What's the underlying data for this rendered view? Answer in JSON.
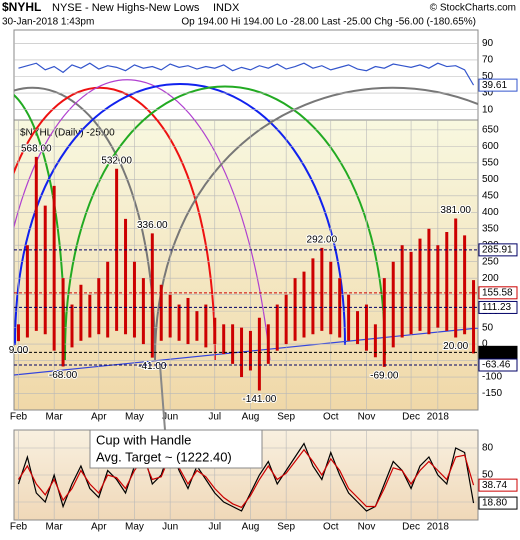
{
  "header": {
    "symbol": "$NYHL",
    "exchange": "NYSE - New Highs-New Lows",
    "index": "INDX",
    "credit": "© StockCharts.com",
    "date": "30-Jan-2018 1:43pm",
    "quote": "Op 194.00  Hi 194.00  Lo -28.00  Last -25.00  Chg -56.00 (-180.65%)"
  },
  "annotation": {
    "line1": "Cup with Handle",
    "line2": "Avg. Target ~ (1222.40)"
  },
  "chart_data": [
    {
      "type": "line",
      "ylim": [
        0,
        100
      ],
      "yticks": [
        90,
        70,
        50,
        30,
        10
      ],
      "color": "#3355cc",
      "values": [
        60,
        63,
        66,
        58,
        62,
        55,
        64,
        60,
        66,
        59,
        63,
        61,
        57,
        64,
        60,
        62,
        58,
        65,
        61,
        63,
        59,
        62,
        60,
        64,
        57,
        61,
        58,
        63,
        60,
        65,
        59,
        62,
        66,
        60,
        63,
        58,
        61,
        64,
        59,
        57,
        62,
        60,
        65,
        63,
        61,
        64,
        60,
        66,
        62,
        63,
        58,
        39.61
      ],
      "value_labels": [
        null,
        null,
        null,
        null,
        null,
        null,
        null,
        null,
        null,
        null,
        null,
        null,
        null,
        null,
        null,
        null,
        null,
        null,
        null,
        null,
        null,
        null,
        null,
        null,
        null,
        null,
        null,
        null,
        null,
        null,
        null,
        null,
        null,
        null,
        null,
        null,
        null,
        null,
        null,
        null,
        null,
        null,
        null,
        null,
        null,
        null,
        null,
        null,
        null,
        null,
        null,
        "39.61"
      ]
    },
    {
      "type": "range-bar",
      "legend": "$NYHL (Daily) -25.00",
      "ylim": [
        -200,
        680
      ],
      "yticks": [
        650,
        600,
        550,
        500,
        450,
        400,
        350,
        300,
        250,
        200,
        150,
        100,
        50,
        0,
        -50,
        -100,
        -150
      ],
      "categories": [
        "Feb",
        null,
        null,
        null,
        "Mar",
        null,
        null,
        null,
        null,
        "Apr",
        null,
        null,
        null,
        "May",
        null,
        null,
        null,
        "Jun",
        null,
        null,
        null,
        null,
        "Jul",
        null,
        null,
        null,
        "Aug",
        null,
        null,
        null,
        "Sep",
        null,
        null,
        null,
        null,
        "Oct",
        null,
        null,
        null,
        "Nov",
        null,
        null,
        null,
        null,
        "Dec",
        null,
        null,
        "2018",
        null,
        null,
        null,
        null
      ],
      "series": [
        {
          "color": "#cc0000",
          "values": [
            60,
            300,
            568,
            420,
            480,
            200,
            120,
            180,
            150,
            200,
            250,
            532,
            380,
            250,
            200,
            336,
            180,
            150,
            120,
            140,
            100,
            120,
            80,
            60,
            60,
            50,
            40,
            80,
            60,
            120,
            150,
            200,
            220,
            260,
            292,
            250,
            200,
            150,
            100,
            120,
            60,
            200,
            250,
            300,
            280,
            320,
            350,
            300,
            340,
            381,
            330,
            194
          ],
          "value_labels": [
            null,
            null,
            "568.00",
            null,
            null,
            null,
            null,
            null,
            null,
            null,
            null,
            "532.00",
            null,
            null,
            null,
            "336.00",
            null,
            null,
            null,
            null,
            null,
            null,
            null,
            null,
            null,
            null,
            null,
            null,
            null,
            null,
            null,
            null,
            null,
            null,
            "292.00",
            null,
            null,
            null,
            null,
            null,
            null,
            null,
            null,
            null,
            null,
            null,
            null,
            null,
            null,
            "381.00",
            null,
            null
          ]
        },
        {
          "color": "#cc0000",
          "values": [
            9,
            20,
            40,
            30,
            -20,
            -68,
            -10,
            10,
            20,
            30,
            20,
            40,
            30,
            20,
            0,
            -41,
            10,
            20,
            10,
            0,
            10,
            -10,
            0,
            -30,
            -60,
            -100,
            -80,
            -141,
            -60,
            -20,
            0,
            10,
            20,
            30,
            40,
            30,
            20,
            10,
            0,
            -20,
            -40,
            -69,
            -10,
            20,
            30,
            40,
            30,
            50,
            40,
            20,
            30,
            -28
          ],
          "value_labels": [
            "9.00",
            null,
            null,
            null,
            null,
            "-68.00",
            null,
            null,
            null,
            null,
            null,
            null,
            null,
            null,
            null,
            "-41.00",
            null,
            null,
            null,
            null,
            null,
            null,
            null,
            null,
            null,
            null,
            null,
            "-141.00",
            null,
            null,
            null,
            null,
            null,
            null,
            null,
            null,
            null,
            null,
            null,
            null,
            null,
            "-69.00",
            null,
            null,
            null,
            null,
            null,
            null,
            null,
            "20.00",
            null,
            null
          ]
        }
      ],
      "levels": [
        {
          "value": 285.91,
          "label": "285.91",
          "color": "#000066"
        },
        {
          "value": 155.58,
          "label": "155.58",
          "color": "#cc0000"
        },
        {
          "value": 111.23,
          "label": "111.23",
          "color": "#000066"
        },
        {
          "value": -25,
          "label": "-25.00",
          "color": "#000000"
        },
        {
          "value": -63.46,
          "label": "-63.46",
          "color": "#000066"
        }
      ]
    },
    {
      "type": "line",
      "ylim": [
        0,
        100
      ],
      "yticks": [
        80,
        50,
        20
      ],
      "categories": [
        "Feb",
        null,
        null,
        null,
        "Mar",
        null,
        null,
        null,
        null,
        "Apr",
        null,
        null,
        null,
        "May",
        null,
        null,
        null,
        "Jun",
        null,
        null,
        null,
        null,
        "Jul",
        null,
        null,
        null,
        "Aug",
        null,
        null,
        null,
        "Sep",
        null,
        null,
        null,
        null,
        "Oct",
        null,
        null,
        null,
        "Nov",
        null,
        null,
        null,
        null,
        "Dec",
        null,
        null,
        "2018",
        null,
        null,
        null,
        null
      ],
      "series": [
        {
          "color": "#000000",
          "values": [
            40,
            70,
            30,
            20,
            50,
            15,
            40,
            60,
            35,
            25,
            55,
            45,
            30,
            60,
            75,
            40,
            50,
            80,
            55,
            35,
            60,
            45,
            30,
            20,
            15,
            10,
            30,
            50,
            65,
            40,
            55,
            70,
            85,
            60,
            45,
            75,
            50,
            30,
            20,
            10,
            15,
            40,
            65,
            55,
            35,
            60,
            70,
            50,
            40,
            80,
            75,
            18.8
          ],
          "value_labels": [
            null,
            null,
            null,
            null,
            null,
            null,
            null,
            null,
            null,
            null,
            null,
            null,
            null,
            null,
            null,
            null,
            null,
            null,
            null,
            null,
            null,
            null,
            null,
            null,
            null,
            null,
            null,
            null,
            null,
            null,
            null,
            null,
            null,
            null,
            null,
            null,
            null,
            null,
            null,
            null,
            null,
            null,
            null,
            null,
            null,
            null,
            null,
            null,
            null,
            null,
            null,
            "18.80"
          ]
        },
        {
          "color": "#cc0000",
          "values": [
            45,
            60,
            40,
            28,
            45,
            22,
            35,
            55,
            40,
            30,
            50,
            47,
            35,
            55,
            68,
            45,
            48,
            72,
            58,
            40,
            55,
            48,
            35,
            25,
            18,
            14,
            27,
            45,
            60,
            45,
            52,
            65,
            78,
            65,
            50,
            68,
            55,
            35,
            25,
            15,
            15,
            35,
            58,
            55,
            40,
            55,
            65,
            55,
            45,
            70,
            72,
            38.74
          ],
          "value_labels": [
            null,
            null,
            null,
            null,
            null,
            null,
            null,
            null,
            null,
            null,
            null,
            null,
            null,
            null,
            null,
            null,
            null,
            null,
            null,
            null,
            null,
            null,
            null,
            null,
            null,
            null,
            null,
            null,
            null,
            null,
            null,
            null,
            null,
            null,
            null,
            null,
            null,
            null,
            null,
            null,
            null,
            null,
            null,
            null,
            null,
            null,
            null,
            null,
            null,
            null,
            null,
            "38.74"
          ]
        }
      ]
    }
  ]
}
